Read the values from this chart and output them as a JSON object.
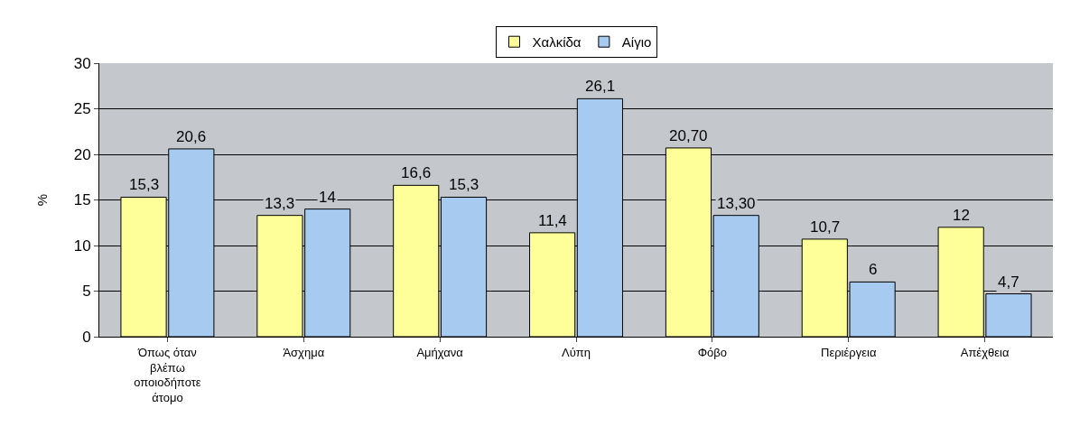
{
  "chart_data": {
    "type": "bar",
    "ylabel": "%",
    "categories": [
      "Όπως όταν βλέπω οποιοδήποτε άτομο",
      "Άσχημα",
      "Αμήχανα",
      "Λύπη",
      "Φόβο",
      "Περιέργεια",
      "Απέχθεια"
    ],
    "series": [
      {
        "name": "Χαλκίδα",
        "color": "#ffff99",
        "values": [
          15.3,
          13.3,
          16.6,
          11.4,
          20.7,
          10.7,
          12
        ],
        "value_labels": [
          "15,3",
          "13,3",
          "16,6",
          "11,4",
          "20,70",
          "10,7",
          "12"
        ]
      },
      {
        "name": "Αίγιο",
        "color": "#a6caf0",
        "values": [
          20.6,
          14,
          15.3,
          26.1,
          13.3,
          6,
          4.7
        ],
        "value_labels": [
          "20,6",
          "14",
          "15,3",
          "26,1",
          "13,30",
          "6",
          "4,7"
        ]
      }
    ],
    "ylim": [
      0,
      30
    ],
    "yticks": [
      0,
      5,
      10,
      15,
      20,
      25,
      30
    ],
    "grid": "y",
    "legend": "top"
  }
}
